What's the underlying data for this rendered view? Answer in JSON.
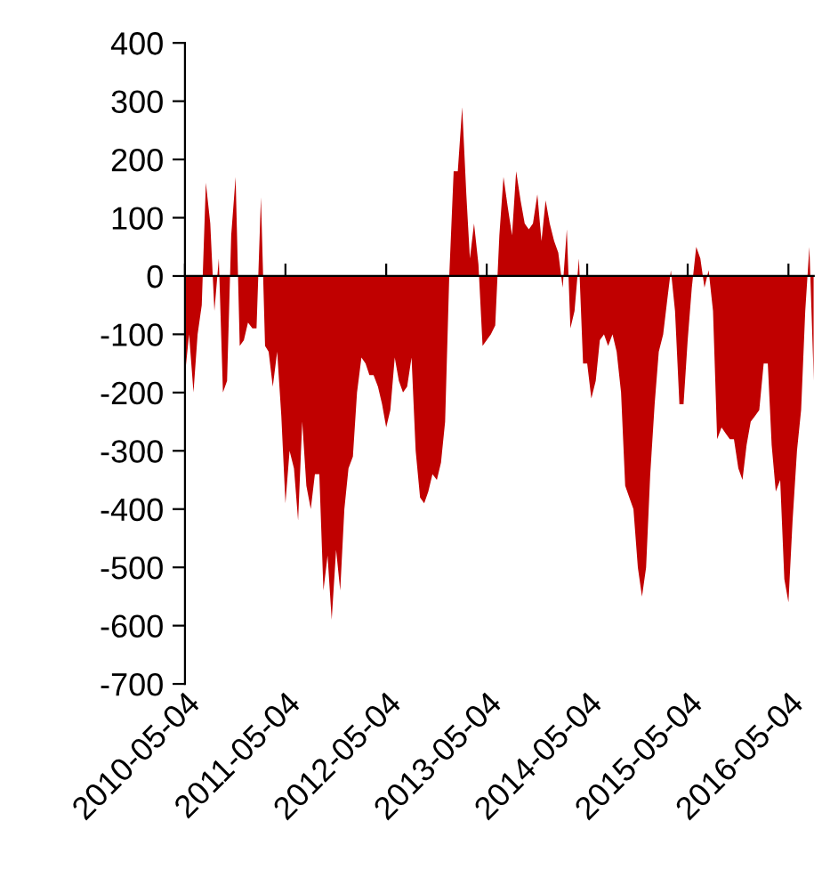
{
  "chart_data": {
    "type": "area",
    "x": [
      "2010-05-04",
      "2010-05-19",
      "2010-06-04",
      "2010-06-19",
      "2010-07-04",
      "2010-07-19",
      "2010-08-04",
      "2010-08-19",
      "2010-09-04",
      "2010-09-19",
      "2010-10-04",
      "2010-10-19",
      "2010-11-04",
      "2010-11-19",
      "2010-12-04",
      "2010-12-19",
      "2011-01-04",
      "2011-01-19",
      "2011-02-04",
      "2011-02-19",
      "2011-03-04",
      "2011-03-19",
      "2011-04-04",
      "2011-04-19",
      "2011-05-04",
      "2011-05-19",
      "2011-06-04",
      "2011-06-19",
      "2011-07-04",
      "2011-07-19",
      "2011-08-04",
      "2011-08-19",
      "2011-09-04",
      "2011-09-19",
      "2011-10-04",
      "2011-10-19",
      "2011-11-04",
      "2011-11-19",
      "2011-12-04",
      "2011-12-19",
      "2012-01-04",
      "2012-01-19",
      "2012-02-04",
      "2012-02-19",
      "2012-03-04",
      "2012-03-19",
      "2012-04-04",
      "2012-04-19",
      "2012-05-04",
      "2012-05-19",
      "2012-06-04",
      "2012-06-19",
      "2012-07-04",
      "2012-07-19",
      "2012-08-04",
      "2012-08-19",
      "2012-09-04",
      "2012-09-19",
      "2012-10-04",
      "2012-10-19",
      "2012-11-04",
      "2012-11-19",
      "2012-12-04",
      "2012-12-19",
      "2013-01-04",
      "2013-01-19",
      "2013-02-04",
      "2013-02-19",
      "2013-03-04",
      "2013-03-19",
      "2013-04-04",
      "2013-04-19",
      "2013-05-04",
      "2013-05-19",
      "2013-06-04",
      "2013-06-19",
      "2013-07-04",
      "2013-07-19",
      "2013-08-04",
      "2013-08-19",
      "2013-09-04",
      "2013-09-19",
      "2013-10-04",
      "2013-10-19",
      "2013-11-04",
      "2013-11-19",
      "2013-12-04",
      "2013-12-19",
      "2014-01-04",
      "2014-01-19",
      "2014-02-04",
      "2014-02-19",
      "2014-03-04",
      "2014-03-19",
      "2014-04-04",
      "2014-04-19",
      "2014-05-04",
      "2014-05-19",
      "2014-06-04",
      "2014-06-19",
      "2014-07-04",
      "2014-07-19",
      "2014-08-04",
      "2014-08-19",
      "2014-09-04",
      "2014-09-19",
      "2014-10-04",
      "2014-10-19",
      "2014-11-04",
      "2014-11-19",
      "2014-12-04",
      "2014-12-19",
      "2015-01-04",
      "2015-01-19",
      "2015-02-04",
      "2015-02-19",
      "2015-03-04",
      "2015-03-19",
      "2015-04-04",
      "2015-04-19",
      "2015-05-04",
      "2015-05-19",
      "2015-06-04",
      "2015-06-19",
      "2015-07-04",
      "2015-07-19",
      "2015-08-04",
      "2015-08-19",
      "2015-09-04",
      "2015-09-19",
      "2015-10-04",
      "2015-10-19",
      "2015-11-04",
      "2015-11-19",
      "2015-12-04",
      "2015-12-19",
      "2016-01-04",
      "2016-01-19",
      "2016-02-04",
      "2016-02-19",
      "2016-03-04",
      "2016-03-19",
      "2016-04-04",
      "2016-04-19",
      "2016-05-04",
      "2016-05-19",
      "2016-06-04",
      "2016-06-19",
      "2016-07-04",
      "2016-07-19",
      "2016-08-04"
    ],
    "series": [
      {
        "color": "#c00000",
        "values": [
          -170,
          -100,
          -200,
          -100,
          -50,
          160,
          90,
          -60,
          30,
          -200,
          -180,
          70,
          170,
          -120,
          -110,
          -80,
          -90,
          -90,
          135,
          -120,
          -130,
          -190,
          -130,
          -240,
          -390,
          -300,
          -330,
          -420,
          -250,
          -360,
          -400,
          -340,
          -340,
          -540,
          -480,
          -590,
          -470,
          -540,
          -400,
          -330,
          -310,
          -200,
          -140,
          -150,
          -170,
          -170,
          -190,
          -220,
          -260,
          -230,
          -140,
          -180,
          -200,
          -190,
          -140,
          -300,
          -380,
          -390,
          -370,
          -340,
          -350,
          -320,
          -250,
          0,
          180,
          180,
          290,
          140,
          30,
          90,
          20,
          -120,
          -110,
          -100,
          -85,
          70,
          170,
          120,
          70,
          180,
          130,
          90,
          80,
          90,
          140,
          60,
          130,
          90,
          60,
          40,
          -20,
          80,
          -90,
          -60,
          30,
          -150,
          -150,
          -210,
          -180,
          -110,
          -100,
          -120,
          -100,
          -130,
          -200,
          -360,
          -380,
          -400,
          -500,
          -550,
          -500,
          -340,
          -220,
          -130,
          -100,
          -40,
          10,
          -60,
          -220,
          -220,
          -110,
          -20,
          50,
          30,
          -20,
          10,
          -60,
          -280,
          -260,
          -270,
          -280,
          -280,
          -330,
          -350,
          -290,
          -250,
          -240,
          -230,
          -150,
          -150,
          -290,
          -370,
          -350,
          -520,
          -560,
          -420,
          -300,
          -230,
          -60,
          50,
          -180
        ]
      }
    ],
    "xlim": [
      "2010-05-04",
      "2016-08-04"
    ],
    "xticks": [
      "2010-05-04",
      "2011-05-04",
      "2012-05-04",
      "2013-05-04",
      "2014-05-04",
      "2015-05-04",
      "2016-05-04"
    ],
    "ylim": [
      -700,
      400
    ],
    "yticks": [
      -700,
      -600,
      -500,
      -400,
      -300,
      -200,
      -100,
      0,
      100,
      200,
      300,
      400
    ],
    "legend": false
  }
}
